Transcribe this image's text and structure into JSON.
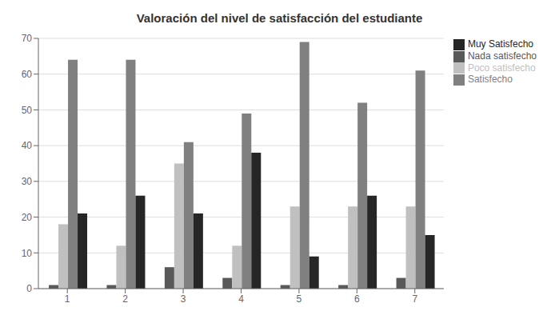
{
  "chart_data": {
    "type": "bar",
    "title": "Valoración del nivel de satisfacción del estudiante",
    "categories": [
      "1",
      "2",
      "3",
      "4",
      "5",
      "6",
      "7"
    ],
    "series": [
      {
        "name": "Nada satisfecho",
        "color": "#595959",
        "values": [
          1,
          1,
          6,
          3,
          1,
          1,
          3
        ]
      },
      {
        "name": "Poco satisfecho",
        "color": "#c0c0c0",
        "values": [
          18,
          12,
          35,
          12,
          23,
          23,
          23
        ]
      },
      {
        "name": "Satisfecho",
        "color": "#808080",
        "values": [
          64,
          64,
          41,
          49,
          69,
          52,
          61
        ]
      },
      {
        "name": "Muy Satisfecho",
        "color": "#262626",
        "values": [
          21,
          26,
          21,
          38,
          9,
          26,
          15
        ]
      }
    ],
    "ylim": [
      0,
      70
    ],
    "yticks": [
      0,
      10,
      20,
      30,
      40,
      50,
      60,
      70
    ],
    "grid": true,
    "legend": "right"
  }
}
